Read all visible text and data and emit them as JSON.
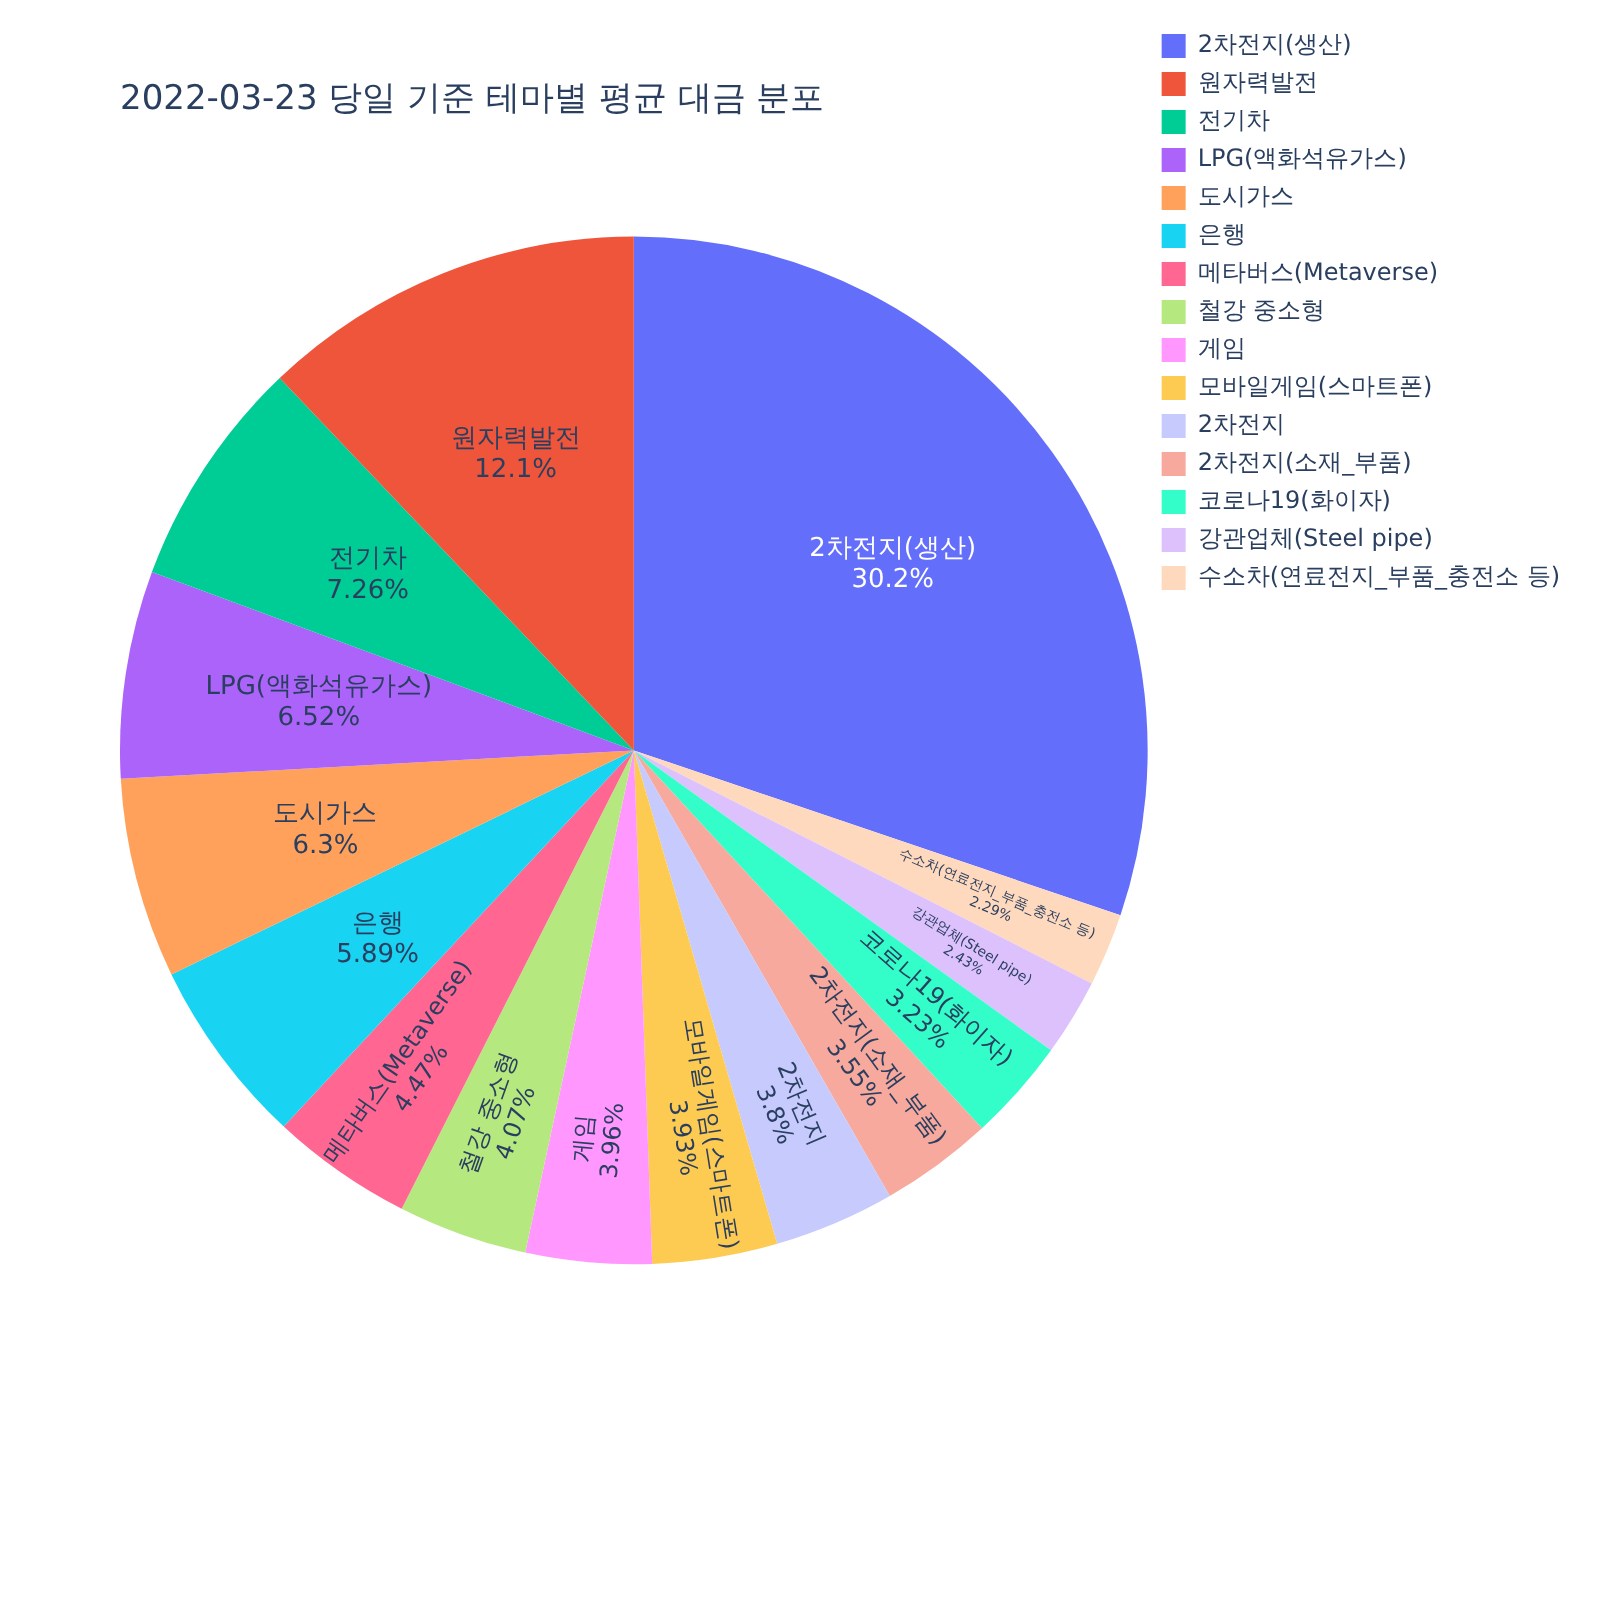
{
  "chart_data": {
    "type": "pie",
    "title": "2022-03-23 당일 기준 테마별 평균 대금 분포",
    "categories": [
      "2차전지(생산)",
      "원자력발전",
      "전기차",
      "LPG(액화석유가스)",
      "도시가스",
      "은행",
      "메타버스(Metaverse)",
      "철강 중소형",
      "게임",
      "모바일게임(스마트폰)",
      "2차전지",
      "2차전지(소재_부품)",
      "코로나19(화이자)",
      "강관업체(Steel pipe)",
      "수소차(연료전지_부품_충전소 등)"
    ],
    "values": [
      30.2,
      12.1,
      7.26,
      6.52,
      6.3,
      5.89,
      4.47,
      4.07,
      3.96,
      3.93,
      3.8,
      3.55,
      3.23,
      2.43,
      2.29
    ],
    "value_labels": [
      "30.2%",
      "12.1%",
      "7.26%",
      "6.52%",
      "6.3%",
      "5.89%",
      "4.47%",
      "4.07%",
      "3.96%",
      "3.93%",
      "3.8%",
      "3.55%",
      "3.23%",
      "2.43%",
      "2.29%"
    ],
    "colors": [
      "#636efa",
      "#ef553b",
      "#00cc96",
      "#ab63fa",
      "#ffa15a",
      "#19d3f3",
      "#ff6692",
      "#b6e880",
      "#ff97ff",
      "#fecb52",
      "#c6cafd",
      "#f7a99d",
      "#33fdc8",
      "#ddc1fd",
      "#ffd9bd"
    ],
    "legend": "top right"
  }
}
